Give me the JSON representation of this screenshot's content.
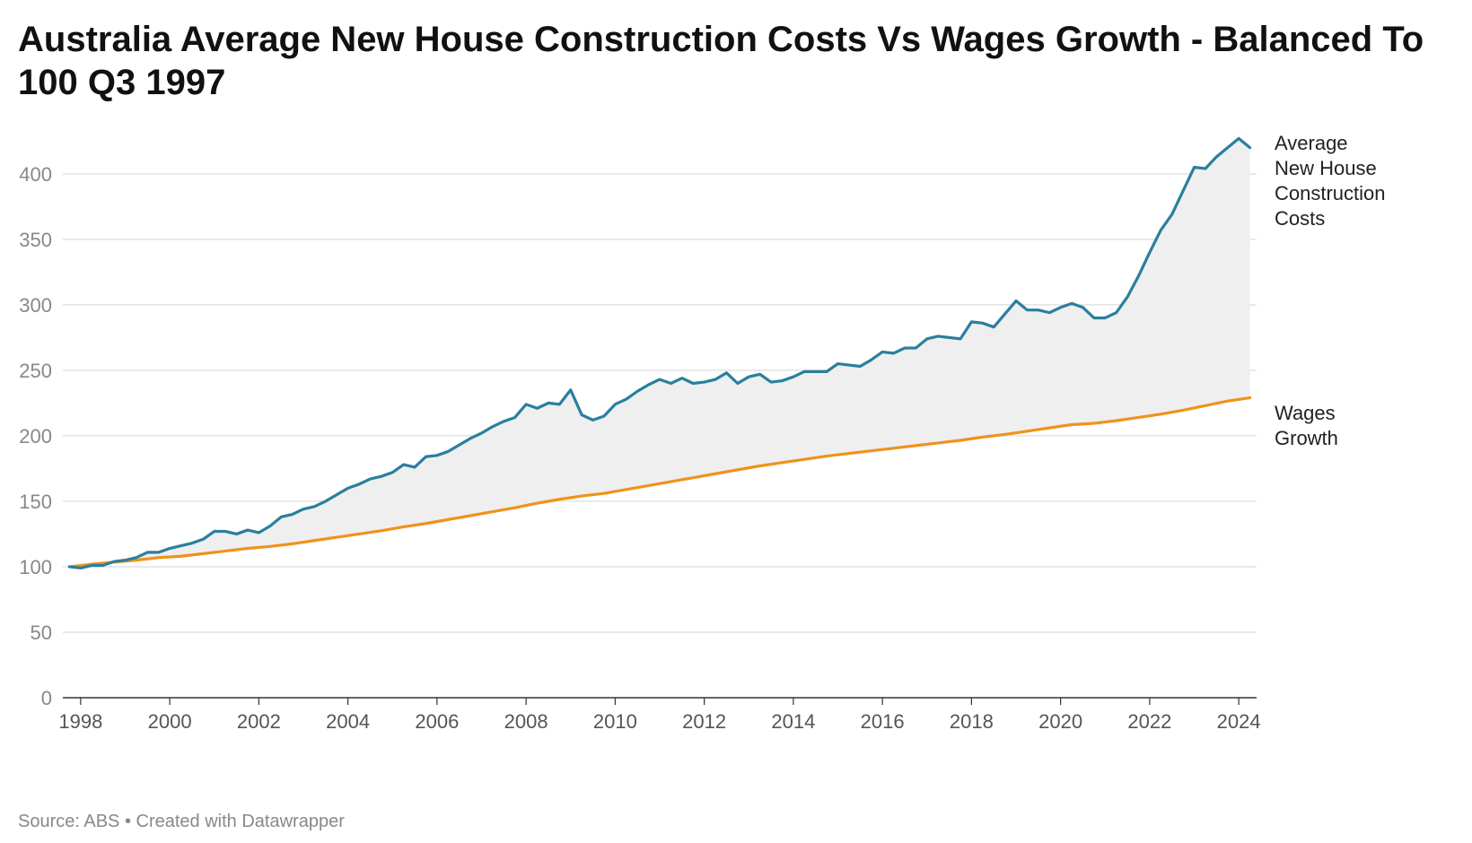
{
  "chart_data": {
    "type": "line",
    "title": "Australia Average New House Construction Costs Vs Wages Growth - Balanced To 100 Q3 1997",
    "xlabel": "",
    "ylabel": "",
    "ylim": [
      0,
      430
    ],
    "yticks": [
      0,
      50,
      100,
      150,
      200,
      250,
      300,
      350,
      400
    ],
    "xlim": [
      1997.6,
      2024.4
    ],
    "xticks": [
      1998,
      2000,
      2002,
      2004,
      2006,
      2008,
      2010,
      2012,
      2014,
      2016,
      2018,
      2020,
      2022,
      2024
    ],
    "fill_between": {
      "color": "#efefef"
    },
    "series": [
      {
        "name": "Average New House Construction Costs",
        "label_lines": [
          "Average",
          "New House",
          "Construction",
          "Costs"
        ],
        "color": "#2a7f9e",
        "points": [
          [
            1997.75,
            100
          ],
          [
            1998.0,
            99
          ],
          [
            1998.25,
            101
          ],
          [
            1998.5,
            101
          ],
          [
            1998.75,
            104
          ],
          [
            1999.0,
            105
          ],
          [
            1999.25,
            107
          ],
          [
            1999.5,
            111
          ],
          [
            1999.75,
            111
          ],
          [
            2000.0,
            114
          ],
          [
            2000.25,
            116
          ],
          [
            2000.5,
            118
          ],
          [
            2000.75,
            121
          ],
          [
            2001.0,
            127
          ],
          [
            2001.25,
            127
          ],
          [
            2001.5,
            125
          ],
          [
            2001.75,
            128
          ],
          [
            2002.0,
            126
          ],
          [
            2002.25,
            131
          ],
          [
            2002.5,
            138
          ],
          [
            2002.75,
            140
          ],
          [
            2003.0,
            144
          ],
          [
            2003.25,
            146
          ],
          [
            2003.5,
            150
          ],
          [
            2003.75,
            155
          ],
          [
            2004.0,
            160
          ],
          [
            2004.25,
            163
          ],
          [
            2004.5,
            167
          ],
          [
            2004.75,
            169
          ],
          [
            2005.0,
            172
          ],
          [
            2005.25,
            178
          ],
          [
            2005.5,
            176
          ],
          [
            2005.75,
            184
          ],
          [
            2006.0,
            185
          ],
          [
            2006.25,
            188
          ],
          [
            2006.5,
            193
          ],
          [
            2006.75,
            198
          ],
          [
            2007.0,
            202
          ],
          [
            2007.25,
            207
          ],
          [
            2007.5,
            211
          ],
          [
            2007.75,
            214
          ],
          [
            2008.0,
            224
          ],
          [
            2008.25,
            221
          ],
          [
            2008.5,
            225
          ],
          [
            2008.75,
            224
          ],
          [
            2009.0,
            235
          ],
          [
            2009.25,
            216
          ],
          [
            2009.5,
            212
          ],
          [
            2009.75,
            215
          ],
          [
            2010.0,
            224
          ],
          [
            2010.25,
            228
          ],
          [
            2010.5,
            234
          ],
          [
            2010.75,
            239
          ],
          [
            2011.0,
            243
          ],
          [
            2011.25,
            240
          ],
          [
            2011.5,
            244
          ],
          [
            2011.75,
            240
          ],
          [
            2012.0,
            241
          ],
          [
            2012.25,
            243
          ],
          [
            2012.5,
            248
          ],
          [
            2012.75,
            240
          ],
          [
            2013.0,
            245
          ],
          [
            2013.25,
            247
          ],
          [
            2013.5,
            241
          ],
          [
            2013.75,
            242
          ],
          [
            2014.0,
            245
          ],
          [
            2014.25,
            249
          ],
          [
            2014.5,
            249
          ],
          [
            2014.75,
            249
          ],
          [
            2015.0,
            255
          ],
          [
            2015.25,
            254
          ],
          [
            2015.5,
            253
          ],
          [
            2015.75,
            258
          ],
          [
            2016.0,
            264
          ],
          [
            2016.25,
            263
          ],
          [
            2016.5,
            267
          ],
          [
            2016.75,
            267
          ],
          [
            2017.0,
            274
          ],
          [
            2017.25,
            276
          ],
          [
            2017.5,
            275
          ],
          [
            2017.75,
            274
          ],
          [
            2018.0,
            287
          ],
          [
            2018.25,
            286
          ],
          [
            2018.5,
            283
          ],
          [
            2018.75,
            293
          ],
          [
            2019.0,
            303
          ],
          [
            2019.25,
            296
          ],
          [
            2019.5,
            296
          ],
          [
            2019.75,
            294
          ],
          [
            2020.0,
            298
          ],
          [
            2020.25,
            301
          ],
          [
            2020.5,
            298
          ],
          [
            2020.75,
            290
          ],
          [
            2021.0,
            290
          ],
          [
            2021.25,
            294
          ],
          [
            2021.5,
            306
          ],
          [
            2021.75,
            322
          ],
          [
            2022.0,
            340
          ],
          [
            2022.25,
            357
          ],
          [
            2022.5,
            369
          ],
          [
            2022.75,
            387
          ],
          [
            2023.0,
            405
          ],
          [
            2023.25,
            404
          ],
          [
            2023.5,
            413
          ],
          [
            2023.75,
            420
          ],
          [
            2024.0,
            427
          ],
          [
            2024.25,
            420
          ]
        ]
      },
      {
        "name": "Wages Growth",
        "label_lines": [
          "Wages",
          "Growth"
        ],
        "color": "#f0921b",
        "points": [
          [
            1997.75,
            100
          ],
          [
            1998.25,
            102
          ],
          [
            1998.75,
            103.5
          ],
          [
            1999.25,
            105
          ],
          [
            1999.75,
            107
          ],
          [
            2000.25,
            108
          ],
          [
            2000.75,
            110
          ],
          [
            2001.25,
            112
          ],
          [
            2001.75,
            114
          ],
          [
            2002.25,
            115.5
          ],
          [
            2002.75,
            117.5
          ],
          [
            2003.25,
            120
          ],
          [
            2003.75,
            122.5
          ],
          [
            2004.25,
            125
          ],
          [
            2004.75,
            127.5
          ],
          [
            2005.25,
            130.5
          ],
          [
            2005.75,
            133
          ],
          [
            2006.25,
            136
          ],
          [
            2006.75,
            139
          ],
          [
            2007.25,
            142
          ],
          [
            2007.75,
            145
          ],
          [
            2008.25,
            148.5
          ],
          [
            2008.75,
            151.5
          ],
          [
            2009.25,
            154
          ],
          [
            2009.75,
            156
          ],
          [
            2010.25,
            159
          ],
          [
            2010.75,
            162
          ],
          [
            2011.25,
            165
          ],
          [
            2011.75,
            168
          ],
          [
            2012.25,
            171
          ],
          [
            2012.75,
            174
          ],
          [
            2013.25,
            177
          ],
          [
            2013.75,
            179.5
          ],
          [
            2014.25,
            182
          ],
          [
            2014.75,
            184.5
          ],
          [
            2015.25,
            186.5
          ],
          [
            2015.75,
            188.5
          ],
          [
            2016.25,
            190.5
          ],
          [
            2016.75,
            192.5
          ],
          [
            2017.25,
            194.5
          ],
          [
            2017.75,
            196.5
          ],
          [
            2018.25,
            199
          ],
          [
            2018.75,
            201
          ],
          [
            2019.25,
            203.5
          ],
          [
            2019.75,
            206
          ],
          [
            2020.25,
            208.5
          ],
          [
            2020.75,
            209.5
          ],
          [
            2021.25,
            211.5
          ],
          [
            2021.75,
            214
          ],
          [
            2022.25,
            216.5
          ],
          [
            2022.75,
            219.5
          ],
          [
            2023.25,
            223
          ],
          [
            2023.75,
            226.5
          ],
          [
            2024.25,
            229
          ]
        ]
      }
    ]
  },
  "footer": {
    "source_text": "Source: ABS • Created with Datawrapper"
  }
}
